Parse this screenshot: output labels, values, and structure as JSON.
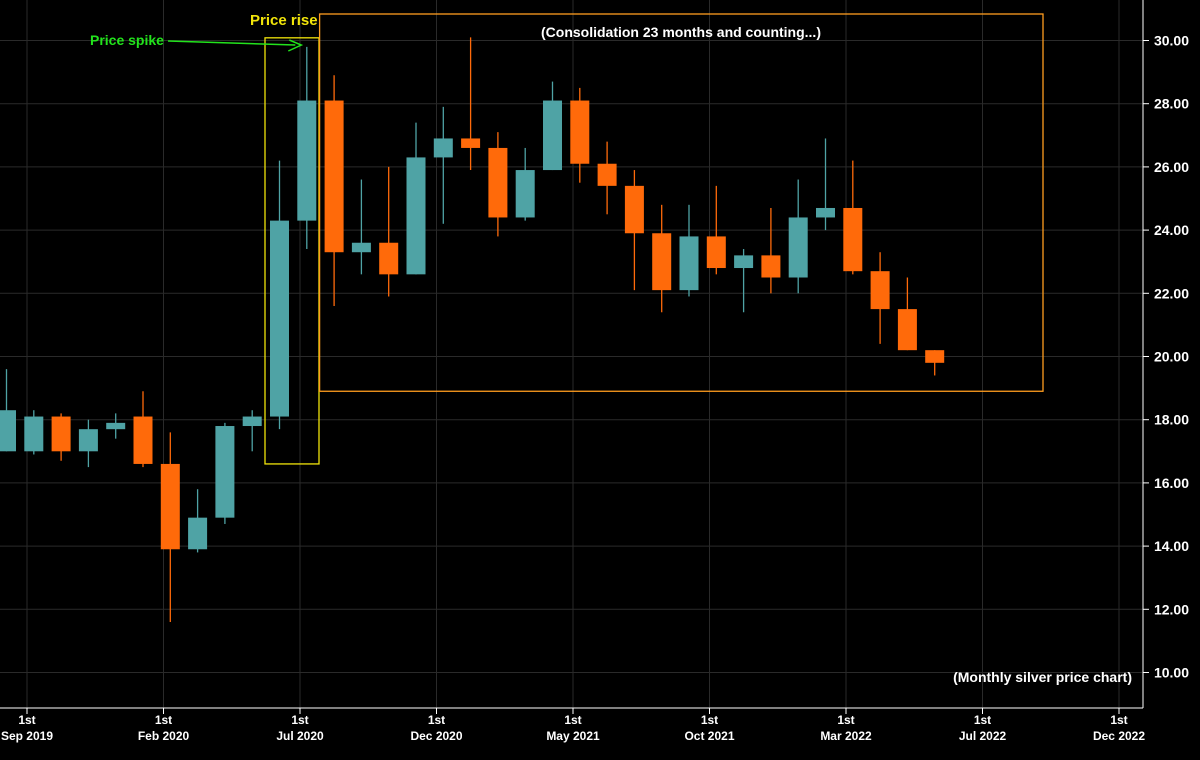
{
  "chart_data": {
    "type": "candlestick",
    "title": "",
    "xlabel": "",
    "ylabel": "",
    "ylim": [
      9,
      31.3
    ],
    "grid": true,
    "y_ticks": [
      "10.00",
      "12.00",
      "14.00",
      "16.00",
      "18.00",
      "20.00",
      "22.00",
      "24.00",
      "26.00",
      "28.00",
      "30.00"
    ],
    "x_ticks": [
      {
        "day": "1st",
        "label": "Sep 2019",
        "index": 0
      },
      {
        "day": "1st",
        "label": "Feb 2020",
        "index": 5
      },
      {
        "day": "1st",
        "label": "Jul 2020",
        "index": 10
      },
      {
        "day": "1st",
        "label": "Dec 2020",
        "index": 15
      },
      {
        "day": "1st",
        "label": "May 2021",
        "index": 20
      },
      {
        "day": "1st",
        "label": "Oct 2021",
        "index": 25
      },
      {
        "day": "1st",
        "label": "Mar 2022",
        "index": 30
      },
      {
        "day": "1st",
        "label": "Jul 2022",
        "index": 35
      },
      {
        "day": "1st",
        "label": "Dec 2022",
        "index": 40
      }
    ],
    "colors": {
      "up": "#4fa3a5",
      "down": "#ff6a0a",
      "grid": "#2a2a2a",
      "axis": "#ffffff",
      "price_rise": "#f1e40a",
      "consolidation": "#ff9d1e",
      "spike": "#22e31c"
    },
    "candles": [
      {
        "month": "Aug 2019",
        "o": 17.0,
        "h": 19.6,
        "l": 17.0,
        "c": 18.3
      },
      {
        "month": "Sep 2019",
        "o": 17.0,
        "h": 18.3,
        "l": 16.9,
        "c": 18.1
      },
      {
        "month": "Oct 2019",
        "o": 18.1,
        "h": 18.2,
        "l": 16.7,
        "c": 17.0
      },
      {
        "month": "Nov 2019",
        "o": 17.0,
        "h": 18.0,
        "l": 16.5,
        "c": 17.7
      },
      {
        "month": "Dec 2019",
        "o": 17.7,
        "h": 18.2,
        "l": 17.4,
        "c": 17.9
      },
      {
        "month": "Jan 2020",
        "o": 18.1,
        "h": 18.9,
        "l": 16.5,
        "c": 16.6
      },
      {
        "month": "Feb 2020",
        "o": 16.6,
        "h": 17.6,
        "l": 11.6,
        "c": 13.9
      },
      {
        "month": "Mar 2020",
        "o": 13.9,
        "h": 15.8,
        "l": 13.8,
        "c": 14.9
      },
      {
        "month": "Apr 2020",
        "o": 14.9,
        "h": 17.9,
        "l": 14.7,
        "c": 17.8
      },
      {
        "month": "May 2020",
        "o": 17.8,
        "h": 18.3,
        "l": 17.0,
        "c": 18.1
      },
      {
        "month": "Jun 2020",
        "o": 18.1,
        "h": 26.2,
        "l": 17.7,
        "c": 24.3
      },
      {
        "month": "Jul 2020",
        "o": 24.3,
        "h": 29.8,
        "l": 23.4,
        "c": 28.1
      },
      {
        "month": "Aug 2020",
        "o": 28.1,
        "h": 28.9,
        "l": 21.6,
        "c": 23.3
      },
      {
        "month": "Sep 2020",
        "o": 23.3,
        "h": 25.6,
        "l": 22.6,
        "c": 23.6
      },
      {
        "month": "Oct 2020",
        "o": 23.6,
        "h": 26.0,
        "l": 21.9,
        "c": 22.6
      },
      {
        "month": "Nov 2020",
        "o": 22.6,
        "h": 27.4,
        "l": 22.6,
        "c": 26.3
      },
      {
        "month": "Dec 2020",
        "o": 26.3,
        "h": 27.9,
        "l": 24.2,
        "c": 26.9
      },
      {
        "month": "Jan 2021",
        "o": 26.9,
        "h": 30.1,
        "l": 25.9,
        "c": 26.6
      },
      {
        "month": "Feb 2021",
        "o": 26.6,
        "h": 27.1,
        "l": 23.8,
        "c": 24.4
      },
      {
        "month": "Mar 2021",
        "o": 24.4,
        "h": 26.6,
        "l": 24.3,
        "c": 25.9
      },
      {
        "month": "Apr 2021",
        "o": 25.9,
        "h": 28.7,
        "l": 25.9,
        "c": 28.1
      },
      {
        "month": "May 2021",
        "o": 28.1,
        "h": 28.5,
        "l": 25.5,
        "c": 26.1
      },
      {
        "month": "Jun 2021",
        "o": 26.1,
        "h": 26.8,
        "l": 24.5,
        "c": 25.4
      },
      {
        "month": "Jul 2021",
        "o": 25.4,
        "h": 25.9,
        "l": 22.1,
        "c": 23.9
      },
      {
        "month": "Aug 2021",
        "o": 23.9,
        "h": 24.8,
        "l": 21.4,
        "c": 22.1
      },
      {
        "month": "Sep 2021",
        "o": 22.1,
        "h": 24.8,
        "l": 21.9,
        "c": 23.8
      },
      {
        "month": "Oct 2021",
        "o": 23.8,
        "h": 25.4,
        "l": 22.6,
        "c": 22.8
      },
      {
        "month": "Nov 2021",
        "o": 22.8,
        "h": 23.4,
        "l": 21.4,
        "c": 23.2
      },
      {
        "month": "Dec 2021",
        "o": 23.2,
        "h": 24.7,
        "l": 22.0,
        "c": 22.5
      },
      {
        "month": "Jan 2022",
        "o": 22.5,
        "h": 25.6,
        "l": 22.0,
        "c": 24.4
      },
      {
        "month": "Feb 2022",
        "o": 24.4,
        "h": 26.9,
        "l": 24.0,
        "c": 24.7
      },
      {
        "month": "Mar 2022",
        "o": 24.7,
        "h": 26.2,
        "l": 22.6,
        "c": 22.7
      },
      {
        "month": "Apr 2022",
        "o": 22.7,
        "h": 23.3,
        "l": 20.4,
        "c": 21.5
      },
      {
        "month": "May 2022",
        "o": 21.5,
        "h": 22.5,
        "l": 20.2,
        "c": 20.2
      },
      {
        "month": "Jun 2022",
        "o": 20.2,
        "h": 20.2,
        "l": 19.4,
        "c": 19.8
      }
    ],
    "annotations": {
      "price_spike": "Price spike",
      "price_rise": "Price rise",
      "consolidation": "(Consolidation 23 months and counting...)",
      "caption": "(Monthly silver price chart)"
    }
  }
}
